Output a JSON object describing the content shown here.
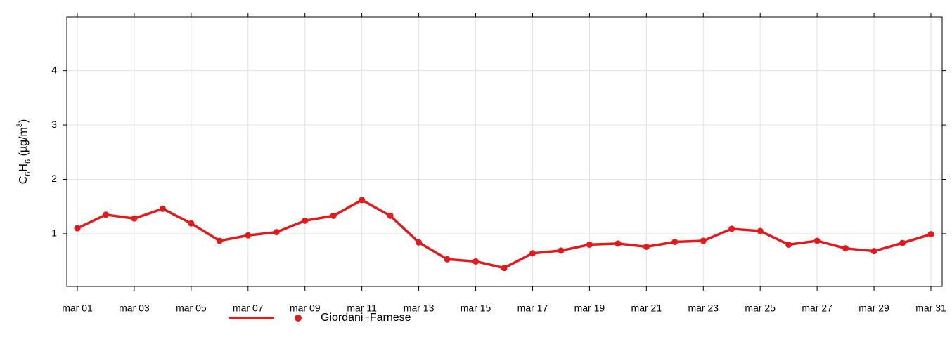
{
  "chart_data": {
    "type": "line",
    "ylabel": [
      "C",
      "6",
      "H",
      "6",
      " (µg/m",
      "3",
      ")"
    ],
    "categories": [
      "mar 01",
      null,
      "mar 03",
      null,
      "mar 05",
      null,
      "mar 07",
      null,
      "mar 09",
      null,
      "mar 11",
      null,
      "mar 13",
      null,
      "mar 15",
      null,
      "mar 17",
      null,
      "mar 19",
      null,
      "mar 21",
      null,
      "mar 23",
      null,
      "mar 25",
      null,
      "mar 27",
      null,
      "mar 29",
      null,
      "mar 31"
    ],
    "series": [
      {
        "name": "Giordani−Farnese",
        "color": "#e3191c",
        "values": [
          1.1,
          1.35,
          1.28,
          1.46,
          1.19,
          0.87,
          0.97,
          1.03,
          1.24,
          1.33,
          1.62,
          1.33,
          0.84,
          0.53,
          0.49,
          0.37,
          0.64,
          0.69,
          0.8,
          0.82,
          0.76,
          0.85,
          0.87,
          1.09,
          1.05,
          0.8,
          0.87,
          0.73,
          0.68,
          0.83,
          0.99
        ]
      }
    ],
    "ylim": [
      0.03,
      4.99
    ],
    "yticks": [
      1,
      2,
      3,
      4
    ],
    "grid": true
  }
}
